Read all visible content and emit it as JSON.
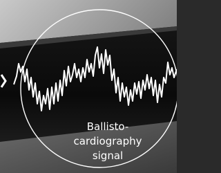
{
  "caption": {
    "lines": [
      "Ballisto-",
      "cardiography",
      "signal"
    ]
  }
}
